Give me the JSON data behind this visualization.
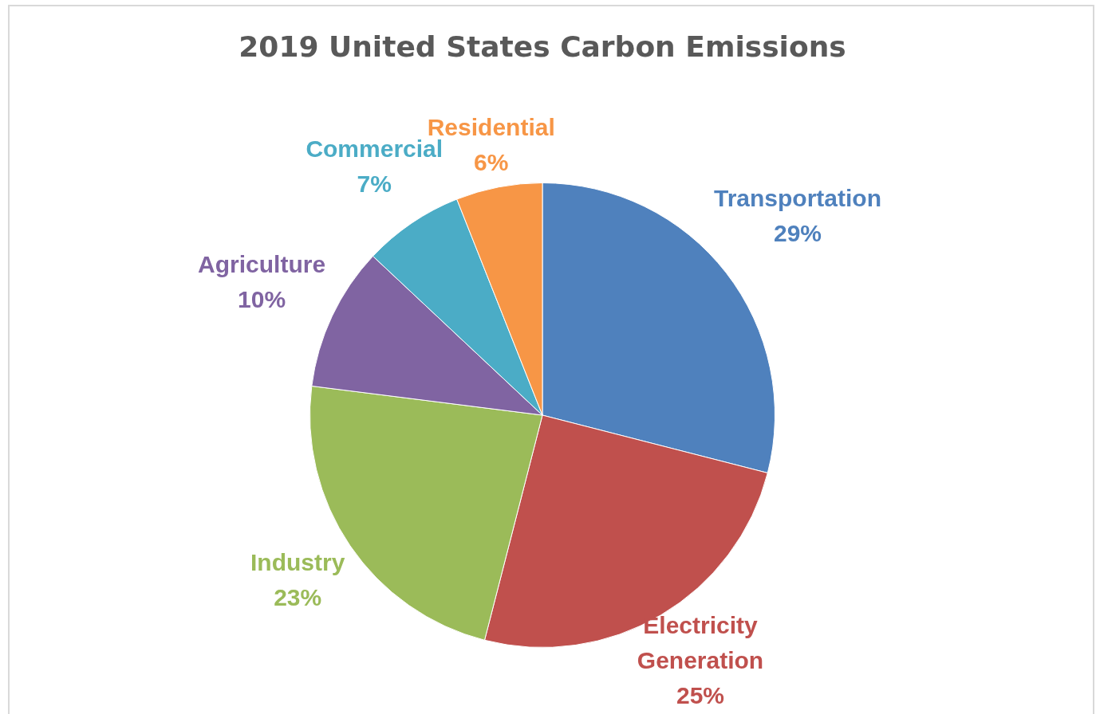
{
  "chart_data": {
    "type": "pie",
    "title": "2019 United States Carbon Emissions",
    "categories": [
      "Transportation",
      "Electricity Generation",
      "Industry",
      "Agriculture",
      "Commercial",
      "Residential"
    ],
    "values": [
      29,
      25,
      23,
      10,
      7,
      6
    ],
    "value_labels": [
      "29%",
      "25%",
      "23%",
      "10%",
      "7%",
      "6%"
    ],
    "colors": [
      "#4f81bd",
      "#c0504d",
      "#9bbb59",
      "#8064a2",
      "#4bacc6",
      "#f79646"
    ],
    "legend": false
  }
}
